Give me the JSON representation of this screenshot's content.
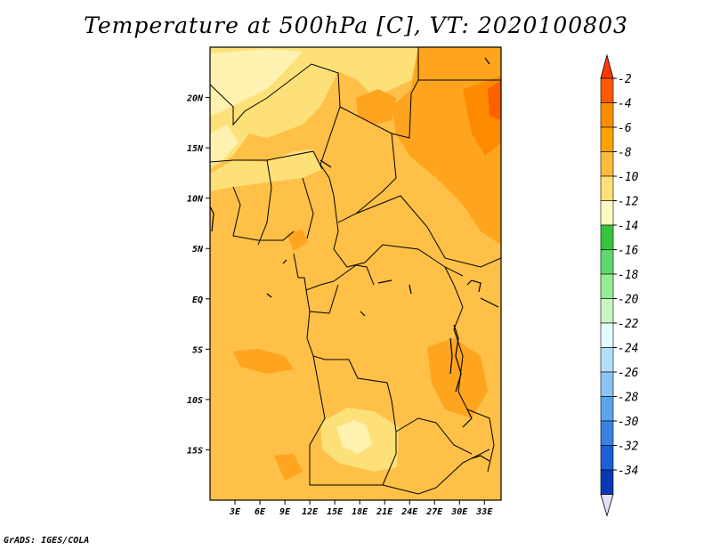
{
  "title": "Temperature at 500hPa [C], VT: 2020100803",
  "credit": "GrADS: IGES/COLA",
  "map": {
    "lon_range": [
      0,
      35
    ],
    "lat_range": [
      -20,
      25
    ],
    "lat_ticks": [
      {
        "value": 20,
        "label": "20N"
      },
      {
        "value": 15,
        "label": "15N"
      },
      {
        "value": 10,
        "label": "10N"
      },
      {
        "value": 5,
        "label": "5N"
      },
      {
        "value": 0,
        "label": "EQ"
      },
      {
        "value": -5,
        "label": "5S"
      },
      {
        "value": -10,
        "label": "10S"
      },
      {
        "value": -15,
        "label": "15S"
      }
    ],
    "lon_ticks": [
      {
        "value": 3,
        "label": "3E"
      },
      {
        "value": 6,
        "label": "6E"
      },
      {
        "value": 9,
        "label": "9E"
      },
      {
        "value": 12,
        "label": "12E"
      },
      {
        "value": 15,
        "label": "15E"
      },
      {
        "value": 18,
        "label": "18E"
      },
      {
        "value": 21,
        "label": "21E"
      },
      {
        "value": 24,
        "label": "24E"
      },
      {
        "value": 27,
        "label": "27E"
      },
      {
        "value": 30,
        "label": "30E"
      },
      {
        "value": 33,
        "label": "33E"
      }
    ]
  },
  "colorbar": {
    "labels": [
      "-2",
      "-4",
      "-6",
      "-8",
      "-10",
      "-12",
      "-14",
      "-16",
      "-18",
      "-20",
      "-22",
      "-24",
      "-26",
      "-28",
      "-30",
      "-32",
      "-34"
    ],
    "colors": [
      "#fe5a00",
      "#fe8e00",
      "#fea200",
      "#feba3c",
      "#fee078",
      "#fffac2",
      "#36c43c",
      "#5fd96e",
      "#96ec92",
      "#c9f7c0",
      "#e6fcfc",
      "#b2defa",
      "#8ac4f4",
      "#5aa5ec",
      "#3a82e2",
      "#1c60d6",
      "#0a3ab2"
    ],
    "top_arrow_color": "#fe3c00",
    "bottom_arrow_color": "#e0e0f8"
  },
  "field_colors": {
    "m6_8": "#fec046",
    "m8_10": "#fee078",
    "m10_12": "#fff2b0",
    "m4_6": "#fea41e",
    "m2_4": "#fe8a00",
    "m0_2": "#fe6000"
  }
}
